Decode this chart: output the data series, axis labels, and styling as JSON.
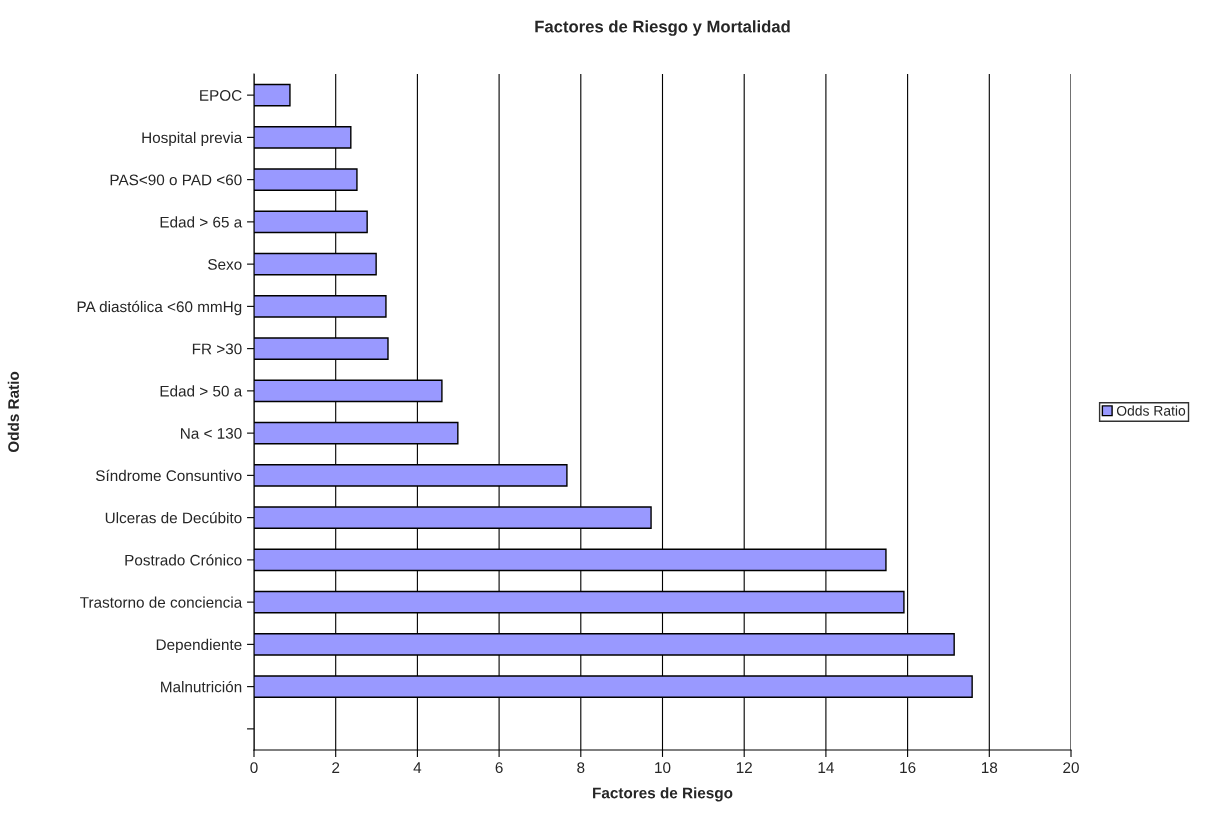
{
  "chart_data": {
    "type": "bar",
    "orientation": "horizontal",
    "title": "Factores de Riesgo y Mortalidad",
    "xlabel": "Factores de Riesgo",
    "ylabel": "Odds Ratio",
    "categories": [
      "EPOC",
      "Hospital previa",
      "PAS<90 o PAD <60",
      "Edad > 65 a",
      "Sexo",
      "PA diastólica <60 mmHg",
      "FR >30",
      "Edad > 50 a",
      "Na < 130",
      "Síndrome Consuntivo",
      "Ulceras de Decúbito",
      "Postrado Crónico",
      "Trastorno de conciencia",
      "Dependiente",
      "Malnutrición",
      null
    ],
    "series": [
      {
        "name": "Odds Ratio",
        "color": "#9999ff",
        "values": [
          0.88,
          2.37,
          2.52,
          2.77,
          2.99,
          3.23,
          3.28,
          4.6,
          4.99,
          7.66,
          9.72,
          15.47,
          15.91,
          17.14,
          17.58,
          null
        ]
      }
    ],
    "xlim": [
      0,
      20
    ],
    "xticks": [
      0,
      2,
      4,
      6,
      8,
      10,
      12,
      14,
      16,
      18,
      20
    ],
    "grid": "x",
    "legend": "right"
  }
}
